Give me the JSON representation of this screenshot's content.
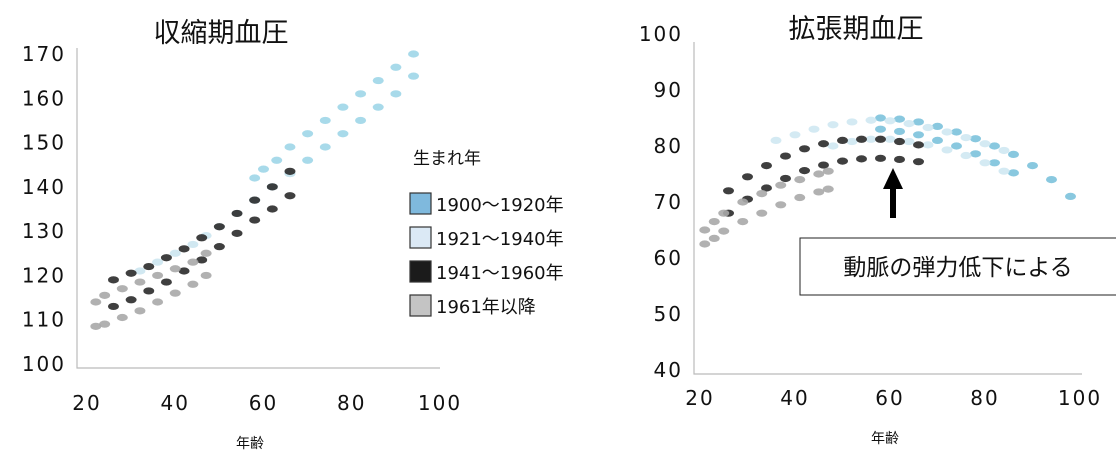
{
  "chart_data": [
    {
      "type": "scatter",
      "title": "収縮期血圧",
      "xlabel": "年齢",
      "ylabel": "",
      "xlim": [
        20,
        100
      ],
      "ylim": [
        100,
        170
      ],
      "xticks": [
        "20",
        "40",
        "60",
        "80",
        "100"
      ],
      "yticks": [
        "100",
        "110",
        "120",
        "130",
        "140",
        "150",
        "160",
        "170"
      ],
      "series": [
        {
          "name": "1900～1920年",
          "color": "#9fd6e8",
          "points": [
            [
              58,
              142
            ],
            [
              60,
              144
            ],
            [
              63,
              146
            ],
            [
              66,
              149
            ],
            [
              70,
              152
            ],
            [
              74,
              155
            ],
            [
              78,
              158
            ],
            [
              82,
              161
            ],
            [
              86,
              164
            ],
            [
              90,
              167
            ],
            [
              94,
              170
            ],
            [
              58,
              137
            ],
            [
              62,
              140
            ],
            [
              66,
              143
            ],
            [
              70,
              146
            ],
            [
              74,
              149
            ],
            [
              78,
              152
            ],
            [
              82,
              155
            ],
            [
              86,
              158
            ],
            [
              90,
              161
            ],
            [
              94,
              165
            ]
          ]
        },
        {
          "name": "1921～1940年",
          "color": "#cce6f0",
          "points": [
            [
              32,
              121
            ],
            [
              36,
              123
            ],
            [
              40,
              125
            ],
            [
              44,
              127
            ],
            [
              47,
              129
            ],
            [
              50,
              131
            ],
            [
              54,
              134
            ],
            [
              58,
              137
            ],
            [
              62,
              140
            ],
            [
              66,
              143
            ]
          ]
        },
        {
          "name": "1941～1960年",
          "color": "#2a2a2a",
          "points": [
            [
              26,
              119
            ],
            [
              30,
              120.5
            ],
            [
              34,
              122
            ],
            [
              38,
              124
            ],
            [
              42,
              126
            ],
            [
              46,
              128.5
            ],
            [
              50,
              131
            ],
            [
              54,
              134
            ],
            [
              58,
              137
            ],
            [
              62,
              140
            ],
            [
              66,
              143.5
            ],
            [
              26,
              113
            ],
            [
              30,
              114.5
            ],
            [
              34,
              116.5
            ],
            [
              38,
              118.5
            ],
            [
              42,
              121
            ],
            [
              46,
              123.5
            ],
            [
              50,
              126.5
            ],
            [
              54,
              129.5
            ],
            [
              58,
              132.5
            ],
            [
              62,
              135
            ],
            [
              66,
              138
            ]
          ]
        },
        {
          "name": "1961年以降",
          "color": "#a8a8a8",
          "points": [
            [
              22,
              108.5
            ],
            [
              24,
              109
            ],
            [
              28,
              110.5
            ],
            [
              32,
              112
            ],
            [
              36,
              114
            ],
            [
              40,
              116
            ],
            [
              44,
              118
            ],
            [
              47,
              120
            ],
            [
              22,
              114
            ],
            [
              24,
              115.5
            ],
            [
              28,
              117
            ],
            [
              32,
              118.5
            ],
            [
              36,
              120
            ],
            [
              40,
              121.5
            ],
            [
              44,
              123
            ],
            [
              47,
              125
            ]
          ]
        }
      ]
    },
    {
      "type": "scatter",
      "title": "拡張期血圧",
      "xlabel": "年齢",
      "ylabel": "",
      "xlim": [
        20,
        100
      ],
      "ylim": [
        40,
        100
      ],
      "xticks": [
        "20",
        "40",
        "60",
        "80",
        "100"
      ],
      "yticks": [
        "40",
        "50",
        "60",
        "70",
        "80",
        "90",
        "100"
      ],
      "annotation": "動脈の弾力低下による",
      "series": [
        {
          "name": "1900～1920年",
          "color": "#7cc2dc",
          "points": [
            [
              58,
              85
            ],
            [
              62,
              84.8
            ],
            [
              66,
              84.3
            ],
            [
              70,
              83.5
            ],
            [
              74,
              82.5
            ],
            [
              78,
              81.3
            ],
            [
              82,
              80
            ],
            [
              86,
              78.5
            ],
            [
              90,
              76.5
            ],
            [
              94,
              74
            ],
            [
              98,
              71
            ],
            [
              58,
              83
            ],
            [
              62,
              82.6
            ],
            [
              66,
              82
            ],
            [
              70,
              81
            ],
            [
              74,
              80
            ],
            [
              78,
              78.6
            ],
            [
              82,
              77
            ],
            [
              86,
              75.2
            ]
          ]
        },
        {
          "name": "1921～1940年",
          "color": "#cfe8f2",
          "points": [
            [
              36,
              81
            ],
            [
              40,
              82
            ],
            [
              44,
              83
            ],
            [
              48,
              83.8
            ],
            [
              52,
              84.3
            ],
            [
              56,
              84.6
            ],
            [
              60,
              84.5
            ],
            [
              64,
              84
            ],
            [
              68,
              83.3
            ],
            [
              72,
              82.5
            ],
            [
              76,
              81.5
            ],
            [
              80,
              80.4
            ],
            [
              84,
              79.2
            ],
            [
              48,
              80
            ],
            [
              52,
              80.8
            ],
            [
              56,
              81.2
            ],
            [
              60,
              81.2
            ],
            [
              64,
              80.8
            ],
            [
              68,
              80.2
            ],
            [
              72,
              79.3
            ],
            [
              76,
              78.3
            ],
            [
              80,
              77
            ],
            [
              84,
              75.5
            ]
          ]
        },
        {
          "name": "1941～1960年",
          "color": "#2a2a2a",
          "points": [
            [
              26,
              72
            ],
            [
              30,
              74.5
            ],
            [
              34,
              76.5
            ],
            [
              38,
              78.2
            ],
            [
              42,
              79.5
            ],
            [
              46,
              80.4
            ],
            [
              50,
              81
            ],
            [
              54,
              81.2
            ],
            [
              58,
              81.2
            ],
            [
              62,
              80.8
            ],
            [
              66,
              80.2
            ],
            [
              26,
              68
            ],
            [
              30,
              70.5
            ],
            [
              34,
              72.5
            ],
            [
              38,
              74.2
            ],
            [
              42,
              75.6
            ],
            [
              46,
              76.6
            ],
            [
              50,
              77.3
            ],
            [
              54,
              77.7
            ],
            [
              58,
              77.8
            ],
            [
              62,
              77.6
            ],
            [
              66,
              77.2
            ]
          ]
        },
        {
          "name": "1961年以降",
          "color": "#a8a8a8",
          "points": [
            [
              21,
              62.5
            ],
            [
              23,
              63.5
            ],
            [
              25,
              64.8
            ],
            [
              29,
              66.5
            ],
            [
              33,
              68
            ],
            [
              37,
              69.5
            ],
            [
              41,
              70.8
            ],
            [
              45,
              71.8
            ],
            [
              47,
              72.3
            ],
            [
              21,
              65
            ],
            [
              23,
              66.5
            ],
            [
              25,
              68
            ],
            [
              29,
              70
            ],
            [
              33,
              71.5
            ],
            [
              37,
              73
            ],
            [
              41,
              74
            ],
            [
              45,
              75
            ],
            [
              47,
              75.5
            ]
          ]
        }
      ]
    }
  ],
  "legend": {
    "title": "生まれ年",
    "items": [
      {
        "label": "1900～1920年",
        "color": "#7fb9dd"
      },
      {
        "label": "1921～1940年",
        "color": "#dbe9f5"
      },
      {
        "label": "1941～1960年",
        "color": "#1b1b1b"
      },
      {
        "label": "1961年以降",
        "color": "#c4c4c4"
      }
    ]
  }
}
